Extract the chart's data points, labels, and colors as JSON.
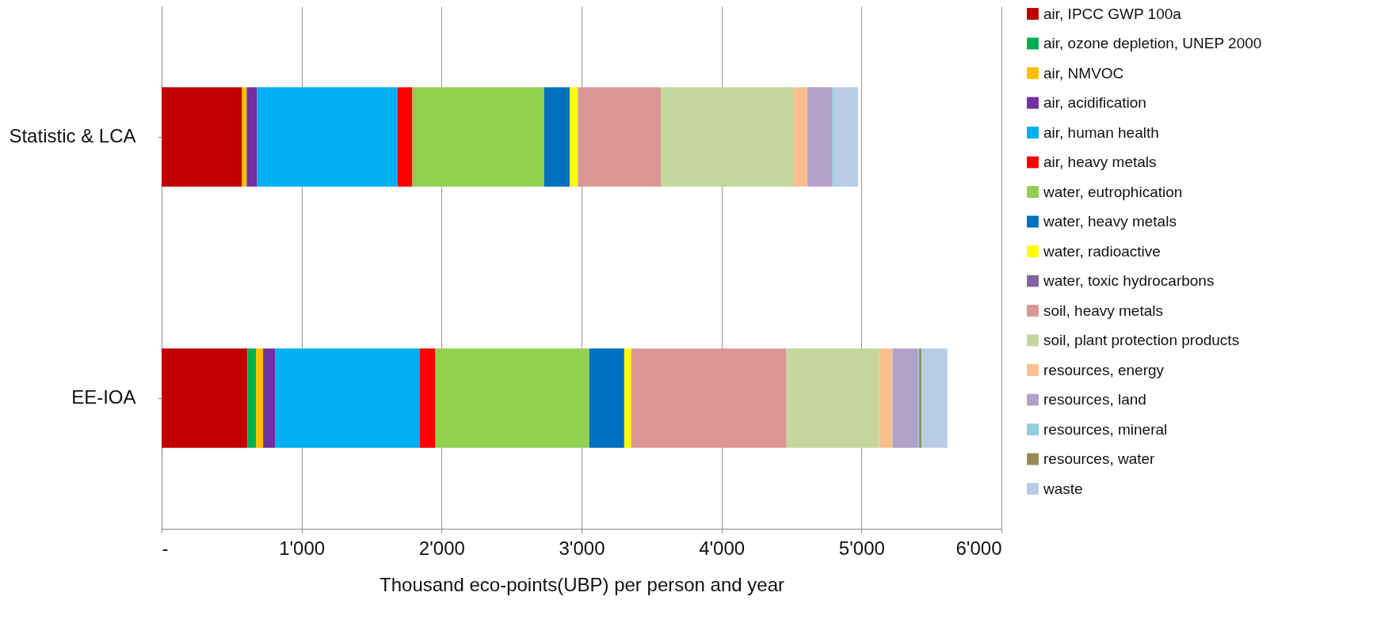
{
  "chart_data": {
    "type": "bar",
    "orientation": "horizontal",
    "stacked": true,
    "xlabel": "Thousand eco-points(UBP) per person and year",
    "categories": [
      "Statistic & LCA",
      "EE-IOA"
    ],
    "xlim": [
      0,
      6000
    ],
    "xticks": [
      {
        "value": 0,
        "label": "-"
      },
      {
        "value": 1000,
        "label": "1'000"
      },
      {
        "value": 2000,
        "label": "2'000"
      },
      {
        "value": 3000,
        "label": "3'000"
      },
      {
        "value": 4000,
        "label": "4'000"
      },
      {
        "value": 5000,
        "label": "5'000"
      },
      {
        "value": 6000,
        "label": "6'000"
      }
    ],
    "grid": "x",
    "legend": "right",
    "series": [
      {
        "name": "air, IPCC GWP 100a",
        "color": "#c00000",
        "values": [
          574,
          613
        ]
      },
      {
        "name": "air, ozone depletion, UNEP 2000",
        "color": "#00b050",
        "values": [
          0,
          61
        ]
      },
      {
        "name": "air, NMVOC",
        "color": "#ffc000",
        "values": [
          34,
          51
        ]
      },
      {
        "name": "air, acidification",
        "color": "#7030a0",
        "values": [
          73,
          88
        ]
      },
      {
        "name": "air, human health",
        "color": "#00b0f0",
        "values": [
          1006,
          1032
        ]
      },
      {
        "name": "air, heavy metals",
        "color": "#ff0000",
        "values": [
          105,
          111
        ]
      },
      {
        "name": "water, eutrophication",
        "color": "#92d050",
        "values": [
          941,
          1099
        ]
      },
      {
        "name": "water, heavy metals",
        "color": "#0070c0",
        "values": [
          183,
          250
        ]
      },
      {
        "name": "water, radioactive",
        "color": "#ffff00",
        "values": [
          58,
          50
        ]
      },
      {
        "name": "water, toxic hydrocarbons",
        "color": "#8064a2",
        "values": [
          0,
          0
        ]
      },
      {
        "name": "soil, heavy metals",
        "color": "#da9694",
        "values": [
          595,
          1109
        ]
      },
      {
        "name": "soil, plant protection products",
        "color": "#c4d79b",
        "values": [
          948,
          660
        ]
      },
      {
        "name": "resources, energy",
        "color": "#fabf8f",
        "values": [
          97,
          98
        ]
      },
      {
        "name": "resources, land",
        "color": "#b1a0c7",
        "values": [
          176,
          183
        ]
      },
      {
        "name": "resources, mineral",
        "color": "#92cddc",
        "values": [
          10,
          7
        ]
      },
      {
        "name": "resources, water",
        "color": "#948a54",
        "values": [
          0,
          16
        ]
      },
      {
        "name": "waste",
        "color": "#b8cce4",
        "values": [
          176,
          186
        ]
      }
    ]
  }
}
